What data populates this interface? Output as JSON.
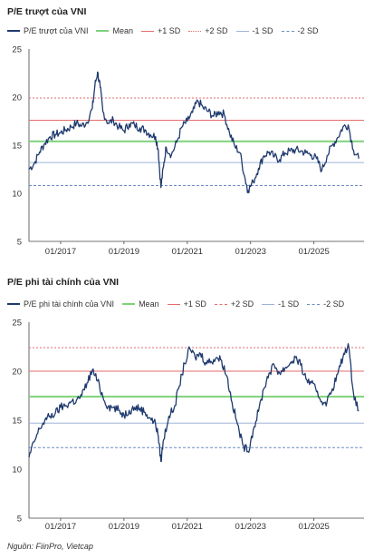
{
  "colors": {
    "series": "#1f3a6e",
    "mean": "#7ed17a",
    "plus1": "#e46b6b",
    "plus2": "#e46b6b",
    "minus1": "#9db3d6",
    "minus2": "#6a8cc4",
    "grid": "#e2e2e2",
    "axis": "#444444"
  },
  "source": "Nguồn: FiinPro, Vietcap",
  "chart_data": [
    {
      "type": "line",
      "title": "P/E trượt của VNI",
      "legend": [
        "P/E trượt của VNI",
        "Mean",
        "+1 SD",
        "+2 SD",
        "-1 SD",
        "-2 SD"
      ],
      "legend_placement": "top",
      "x_range": [
        "2016-01",
        "2026-08"
      ],
      "x_ticks": [
        "01/2017",
        "01/2019",
        "01/2021",
        "01/2023",
        "01/2025"
      ],
      "ylim": [
        5,
        25
      ],
      "y_ticks": [
        5,
        10,
        15,
        20,
        25
      ],
      "grid": "none",
      "reference_lines": {
        "mean": 15.4,
        "plus1": 17.6,
        "plus2": 19.9,
        "minus1": 13.2,
        "minus2": 10.8
      },
      "series": [
        {
          "name": "P/E trượt của VNI",
          "x": [
            "2016-01",
            "2016-03",
            "2016-05",
            "2016-07",
            "2016-09",
            "2016-11",
            "2017-01",
            "2017-03",
            "2017-05",
            "2017-07",
            "2017-09",
            "2017-11",
            "2018-01",
            "2018-02",
            "2018-03",
            "2018-04",
            "2018-05",
            "2018-07",
            "2018-09",
            "2018-11",
            "2019-01",
            "2019-03",
            "2019-05",
            "2019-07",
            "2019-09",
            "2019-11",
            "2020-01",
            "2020-02",
            "2020-03",
            "2020-04",
            "2020-05",
            "2020-07",
            "2020-09",
            "2020-11",
            "2021-01",
            "2021-03",
            "2021-05",
            "2021-07",
            "2021-09",
            "2021-11",
            "2022-01",
            "2022-03",
            "2022-05",
            "2022-07",
            "2022-09",
            "2022-11",
            "2022-12",
            "2023-02",
            "2023-04",
            "2023-06",
            "2023-08",
            "2023-10",
            "2023-12",
            "2024-02",
            "2024-04",
            "2024-06",
            "2024-08",
            "2024-10",
            "2024-12",
            "2025-02",
            "2025-04",
            "2025-06",
            "2025-08",
            "2025-10",
            "2025-12",
            "2026-02",
            "2026-04",
            "2026-06"
          ],
          "values": [
            12.5,
            13.1,
            14.3,
            15.2,
            15.9,
            16.1,
            16.3,
            16.6,
            16.9,
            17.3,
            17.0,
            17.4,
            18.8,
            21.2,
            22.6,
            21.0,
            18.5,
            17.3,
            17.6,
            16.9,
            16.5,
            17.2,
            17.1,
            16.8,
            16.6,
            16.1,
            15.9,
            14.5,
            10.6,
            12.8,
            14.8,
            14.0,
            15.3,
            16.9,
            17.5,
            18.4,
            19.6,
            18.9,
            18.5,
            18.0,
            18.5,
            18.2,
            16.3,
            14.9,
            14.2,
            11.4,
            10.3,
            11.2,
            12.6,
            13.9,
            14.3,
            13.8,
            13.5,
            14.2,
            14.4,
            14.5,
            14.4,
            14.2,
            14.0,
            13.6,
            12.4,
            13.9,
            15.0,
            15.8,
            16.9,
            17.1,
            14.5,
            13.6
          ]
        }
      ]
    },
    {
      "type": "line",
      "title": "P/E phi tài chính của VNI",
      "legend": [
        "P/E phi tài chính của VNI",
        "Mean",
        "+1 SD",
        "+2 SD",
        "-1 SD",
        "-2 SD"
      ],
      "legend_placement": "top",
      "x_range": [
        "2016-01",
        "2026-08"
      ],
      "x_ticks": [
        "01/2017",
        "01/2019",
        "01/2021",
        "01/2023",
        "01/2025"
      ],
      "ylim": [
        5,
        25
      ],
      "y_ticks": [
        5,
        10,
        15,
        20,
        25
      ],
      "grid": "none",
      "reference_lines": {
        "mean": 17.4,
        "plus1": 20.0,
        "plus2": 22.4,
        "minus1": 14.7,
        "minus2": 12.2
      },
      "series": [
        {
          "name": "P/E phi tài chính của VNI",
          "x": [
            "2016-01",
            "2016-03",
            "2016-05",
            "2016-07",
            "2016-09",
            "2016-11",
            "2017-01",
            "2017-03",
            "2017-05",
            "2017-07",
            "2017-09",
            "2017-11",
            "2018-01",
            "2018-03",
            "2018-05",
            "2018-07",
            "2018-09",
            "2018-11",
            "2019-01",
            "2019-03",
            "2019-05",
            "2019-07",
            "2019-09",
            "2019-11",
            "2020-01",
            "2020-02",
            "2020-03",
            "2020-04",
            "2020-06",
            "2020-08",
            "2020-10",
            "2020-12",
            "2021-02",
            "2021-04",
            "2021-06",
            "2021-08",
            "2021-10",
            "2021-12",
            "2022-02",
            "2022-04",
            "2022-06",
            "2022-08",
            "2022-10",
            "2022-12",
            "2023-02",
            "2023-04",
            "2023-06",
            "2023-08",
            "2023-10",
            "2023-12",
            "2024-02",
            "2024-04",
            "2024-06",
            "2024-08",
            "2024-10",
            "2024-12",
            "2025-02",
            "2025-04",
            "2025-06",
            "2025-08",
            "2025-10",
            "2025-12",
            "2026-02",
            "2026-04",
            "2026-06"
          ],
          "values": [
            11.2,
            12.8,
            14.1,
            15.0,
            15.4,
            15.7,
            16.3,
            16.5,
            16.9,
            17.0,
            17.5,
            18.8,
            20.1,
            19.0,
            17.4,
            16.4,
            16.3,
            16.0,
            15.5,
            16.0,
            16.3,
            16.2,
            15.8,
            15.2,
            14.6,
            13.4,
            10.8,
            13.0,
            15.4,
            16.2,
            18.5,
            20.8,
            22.3,
            21.4,
            21.8,
            20.9,
            21.0,
            21.4,
            21.1,
            19.5,
            16.8,
            14.6,
            12.5,
            11.8,
            14.0,
            15.9,
            18.2,
            19.8,
            20.6,
            19.8,
            20.3,
            20.8,
            21.4,
            20.6,
            19.2,
            18.8,
            17.9,
            16.9,
            16.9,
            18.2,
            19.7,
            21.4,
            22.8,
            17.8,
            16.0
          ]
        }
      ]
    }
  ]
}
